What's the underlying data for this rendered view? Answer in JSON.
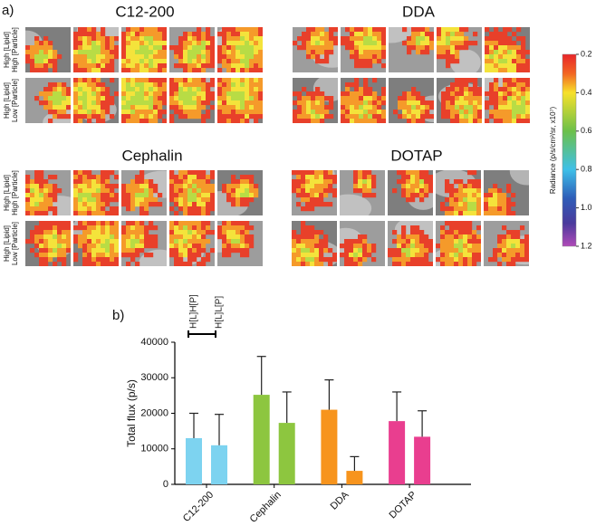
{
  "panel_labels": [
    "a)",
    "b)"
  ],
  "imaging": {
    "group_titles": [
      "C12-200",
      "DDA",
      "Cephalin",
      "DOTAP"
    ],
    "row_labels": [
      [
        "High [Lipid]",
        "High [Particle]"
      ],
      [
        "High [Lipid]",
        "Low [Particle]"
      ]
    ],
    "colorbar": {
      "label": "Radiance (p/s/cm²/sr, x10⁷)",
      "lim": [
        0.2,
        1.2
      ],
      "ticks": [
        0.2,
        0.4,
        0.6,
        0.8,
        {
          "value": 1.0,
          "label": "1.0"
        },
        1.2
      ]
    }
  },
  "chart_data": {
    "type": "bar",
    "ylabel": "Total flux (p/s)",
    "categories": [
      "C12-200",
      "Cephalin",
      "DDA",
      "DOTAP"
    ],
    "category_colors": [
      "#7dd3f0",
      "#8dc63f",
      "#f7941d",
      "#e93e8f"
    ],
    "series": [
      {
        "name": "H[L]H[P]",
        "values": [
          13000,
          25200,
          21000,
          17800
        ],
        "errors": [
          7000,
          10800,
          8400,
          8200
        ]
      },
      {
        "name": "H[L]L[P]",
        "values": [
          11000,
          17300,
          3800,
          13400
        ],
        "errors": [
          8700,
          8700,
          4000,
          7300
        ]
      }
    ],
    "ylim": [
      0,
      40000
    ],
    "yticks": [
      0,
      10000,
      20000,
      30000,
      40000
    ]
  }
}
